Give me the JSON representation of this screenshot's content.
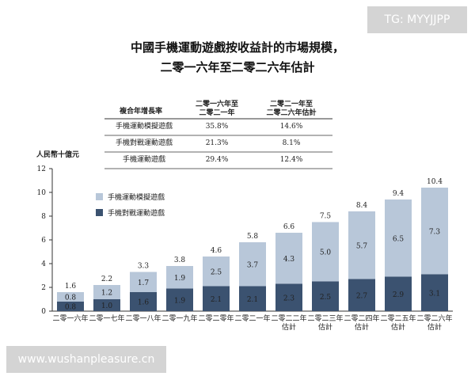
{
  "title_line1": "中國手機運動遊戲按收益計的市場規模，",
  "title_line2": "二零一六年至二零二六年估計",
  "watermark_tag": "TG: MYYJJPP",
  "watermark_url": "www.wushanpleasure.cn",
  "table": {
    "header_row": "複合年增長率",
    "header_col1": [
      "二零一六年至",
      "二零二一年"
    ],
    "header_col2": [
      "二零二一年至",
      "二零二六年估計"
    ],
    "rows": [
      {
        "label": "手機運動模擬遊戲",
        "v1": "35.8%",
        "v2": "14.6%"
      },
      {
        "label": "手機對戰運動遊戲",
        "v1": "21.3%",
        "v2": "8.1%"
      },
      {
        "label": "手機運動遊戲",
        "v1": "29.4%",
        "v2": "12.4%"
      }
    ]
  },
  "chart_data": {
    "type": "bar",
    "stacked": true,
    "ylabel": "人民幣十億元",
    "ylim": [
      0,
      12
    ],
    "yticks": [
      0,
      2,
      4,
      6,
      8,
      10,
      12
    ],
    "categories": [
      [
        "二零一六年"
      ],
      [
        "二零一七年"
      ],
      [
        "二零一八年"
      ],
      [
        "二零一九年"
      ],
      [
        "二零二零年"
      ],
      [
        "二零二一年"
      ],
      [
        "二零二二年",
        "估計"
      ],
      [
        "二零二三年",
        "估計"
      ],
      [
        "二零二四年",
        "估計"
      ],
      [
        "二零二五年",
        "估計"
      ],
      [
        "二零二六年",
        "估計"
      ]
    ],
    "series": [
      {
        "name": "手機對戰運動遊戲",
        "color": "#3b5270",
        "values": [
          0.8,
          1.0,
          1.6,
          1.9,
          2.1,
          2.1,
          2.3,
          2.5,
          2.7,
          2.9,
          3.1
        ]
      },
      {
        "name": "手機運動模擬遊戲",
        "color": "#b8c7d9",
        "values": [
          0.8,
          1.2,
          1.7,
          1.9,
          2.5,
          3.7,
          4.3,
          5.0,
          5.7,
          6.5,
          7.3
        ]
      }
    ],
    "totals": [
      1.6,
      2.2,
      3.3,
      3.8,
      4.6,
      5.8,
      6.6,
      7.5,
      8.4,
      9.4,
      10.4
    ],
    "legend_position": "top-left",
    "grid": false
  }
}
